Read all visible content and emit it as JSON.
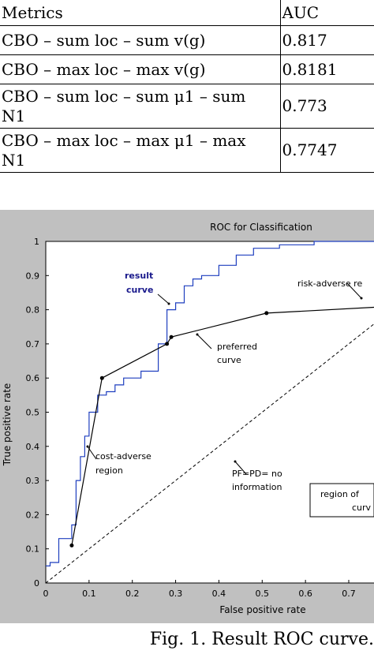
{
  "table": {
    "header": {
      "metrics": "Metrics",
      "auc": "AUC"
    },
    "rows": [
      {
        "metric": "CBO – sum loc – sum v(g)",
        "auc": "0.817"
      },
      {
        "metric": "CBO – max loc – max v(g)",
        "auc": "0.8181"
      },
      {
        "metric_line1": "CBO – sum loc – sum μ1 – sum",
        "metric_line2": "N1",
        "auc": "0.773"
      },
      {
        "metric_line1": "CBO – max loc – max μ1 – max",
        "metric_line2": "N1",
        "auc": "0.7747"
      }
    ]
  },
  "figure": {
    "caption": "Fig. 1. Result ROC curve.",
    "annotations": {
      "result_curve_1": "result",
      "result_curve_2": "curve",
      "risk_adverse": "risk-adverse re",
      "preferred_1": "preferred",
      "preferred_2": "curve",
      "cost_adverse_1": "cost-adverse",
      "cost_adverse_2": "region",
      "pfpd_1": "PF=PD= no",
      "pfpd_2": "information",
      "region_of_1": "region of",
      "region_of_2": "curv"
    },
    "colors": {
      "background": "#c0c0c0",
      "result_curve": "#1f3fbf",
      "preferred_curve": "#000000"
    }
  },
  "chart_data": {
    "type": "line",
    "title": "ROC for Classification",
    "xlabel": "False positive rate",
    "ylabel": "True positive rate",
    "xlim": [
      0,
      0.8
    ],
    "ylim": [
      0,
      1
    ],
    "x_ticks": [
      "0",
      "0.1",
      "0.2",
      "0.3",
      "0.4",
      "0.5",
      "0.6",
      "0.7"
    ],
    "y_ticks": [
      "0",
      "0.1",
      "0.2",
      "0.3",
      "0.4",
      "0.5",
      "0.6",
      "0.7",
      "0.8",
      "0.9",
      "1"
    ],
    "series": [
      {
        "name": "result curve",
        "color": "#1f3fbf",
        "x": [
          0,
          0.01,
          0.01,
          0.03,
          0.03,
          0.06,
          0.06,
          0.07,
          0.07,
          0.08,
          0.08,
          0.09,
          0.09,
          0.1,
          0.1,
          0.12,
          0.12,
          0.14,
          0.14,
          0.16,
          0.16,
          0.18,
          0.18,
          0.22,
          0.22,
          0.26,
          0.26,
          0.28,
          0.28,
          0.3,
          0.3,
          0.32,
          0.32,
          0.34,
          0.34,
          0.36,
          0.36,
          0.4,
          0.4,
          0.44,
          0.44,
          0.48,
          0.48,
          0.54,
          0.54,
          0.62,
          0.62,
          0.7,
          0.7,
          0.8
        ],
        "y": [
          0.05,
          0.05,
          0.06,
          0.06,
          0.13,
          0.13,
          0.17,
          0.17,
          0.3,
          0.3,
          0.37,
          0.37,
          0.43,
          0.43,
          0.5,
          0.5,
          0.55,
          0.55,
          0.56,
          0.56,
          0.58,
          0.58,
          0.6,
          0.6,
          0.62,
          0.62,
          0.7,
          0.7,
          0.8,
          0.8,
          0.82,
          0.82,
          0.87,
          0.87,
          0.89,
          0.89,
          0.9,
          0.9,
          0.93,
          0.93,
          0.96,
          0.96,
          0.98,
          0.98,
          0.99,
          0.99,
          1.0,
          1.0,
          1.0,
          1.0
        ]
      },
      {
        "name": "preferred curve",
        "color": "#000000",
        "x": [
          0.06,
          0.13,
          0.28,
          0.29,
          0.51,
          0.8
        ],
        "y": [
          0.11,
          0.6,
          0.7,
          0.72,
          0.79,
          0.81
        ]
      },
      {
        "name": "PF=PD= no information",
        "color": "#000000",
        "dashed": true,
        "x": [
          0,
          0.8
        ],
        "y": [
          0,
          0.8
        ]
      }
    ],
    "markers": {
      "x": [
        0.06,
        0.13,
        0.28,
        0.29,
        0.51
      ],
      "y": [
        0.11,
        0.6,
        0.7,
        0.72,
        0.79
      ]
    },
    "grid": false
  }
}
